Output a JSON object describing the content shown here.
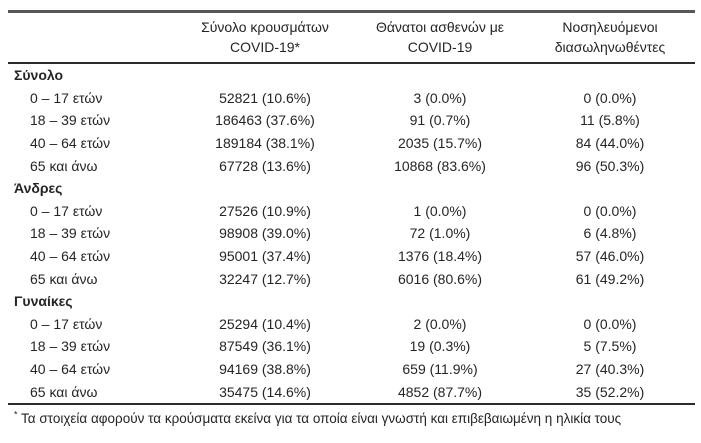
{
  "table": {
    "columns": [
      {
        "line1": "Σύνολο κρουσμάτων",
        "line2": "COVID-19*"
      },
      {
        "line1": "Θάνατοι ασθενών με",
        "line2": "COVID-19"
      },
      {
        "line1": "Νοσηλευόμενοι",
        "line2": "διασωληνωθέντες"
      }
    ],
    "sections": [
      {
        "title": "Σύνολο",
        "rows": [
          {
            "label": "0 – 17 ετών",
            "cases": "52821 (10.6%)",
            "deaths": "3 (0.0%)",
            "intubated": "0 (0.0%)"
          },
          {
            "label": "18 – 39 ετών",
            "cases": "186463 (37.6%)",
            "deaths": "91 (0.7%)",
            "intubated": "11 (5.8%)"
          },
          {
            "label": "40 – 64 ετών",
            "cases": "189184 (38.1%)",
            "deaths": "2035 (15.7%)",
            "intubated": "84 (44.0%)"
          },
          {
            "label": "65 και άνω",
            "cases": "67728 (13.6%)",
            "deaths": "10868 (83.6%)",
            "intubated": "96 (50.3%)"
          }
        ]
      },
      {
        "title": "Άνδρες",
        "rows": [
          {
            "label": "0 – 17 ετών",
            "cases": "27526 (10.9%)",
            "deaths": "1 (0.0%)",
            "intubated": "0 (0.0%)"
          },
          {
            "label": "18 – 39 ετών",
            "cases": "98908 (39.0%)",
            "deaths": "72 (1.0%)",
            "intubated": "6 (4.8%)"
          },
          {
            "label": "40 – 64 ετών",
            "cases": "95001 (37.4%)",
            "deaths": "1376 (18.4%)",
            "intubated": "57 (46.0%)"
          },
          {
            "label": "65 και άνω",
            "cases": "32247 (12.7%)",
            "deaths": "6016 (80.6%)",
            "intubated": "61 (49.2%)"
          }
        ]
      },
      {
        "title": "Γυναίκες",
        "rows": [
          {
            "label": "0 – 17 ετών",
            "cases": "25294 (10.4%)",
            "deaths": "2 (0.0%)",
            "intubated": "0 (0.0%)"
          },
          {
            "label": "18 – 39 ετών",
            "cases": "87549 (36.1%)",
            "deaths": "19 (0.3%)",
            "intubated": "5 (7.5%)"
          },
          {
            "label": "40 – 64 ετών",
            "cases": "94169 (38.8%)",
            "deaths": "659 (11.9%)",
            "intubated": "27 (40.3%)"
          },
          {
            "label": "65 και άνω",
            "cases": "35475 (14.6%)",
            "deaths": "4852 (87.7%)",
            "intubated": "35 (52.2%)"
          }
        ]
      }
    ],
    "footnote": {
      "marker": "*",
      "text": "Τα στοιχεία αφορούν τα κρούσματα εκείνα για τα οποία είναι γνωστή και επιβεβαιωμένη η ηλικία τους"
    }
  },
  "colors": {
    "text": "#262424",
    "top_rule": "#57585a",
    "rule": "#2b2b2b",
    "background": "#ffffff"
  }
}
